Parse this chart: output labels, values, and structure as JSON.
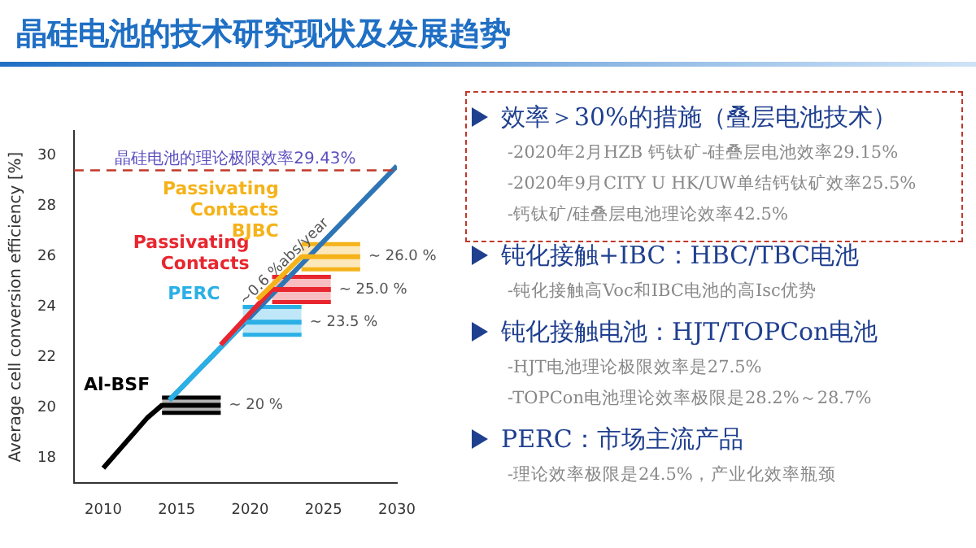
{
  "chart_data": {
    "type": "line",
    "title": "晶硅电池的技术研究现状及发展趋势",
    "ylabel": "Average cell conversion efficiency [%]",
    "xlim": [
      2008,
      2030
    ],
    "xticks": [
      2010,
      2015,
      2020,
      2025,
      2030
    ],
    "ylim": [
      17,
      31
    ],
    "yticks": [
      18,
      20,
      22,
      24,
      26,
      28,
      30
    ],
    "grid": false,
    "legend": false,
    "marker": "none",
    "line_style": "solid",
    "series": [
      {
        "name": "Al-BSF",
        "color": "#000000",
        "x": [
          2010,
          2013,
          2014,
          2018
        ],
        "values": [
          17.6,
          19.6,
          20.1,
          20.1
        ],
        "lower": [
          null,
          null,
          19.8,
          19.8
        ],
        "upper": [
          null,
          null,
          20.4,
          20.4
        ]
      },
      {
        "color": "#2e75b6",
        "x": [
          2014.5,
          2030
        ],
        "values": [
          20.3,
          29.6
        ]
      },
      {
        "name": "PERC",
        "color": "#2bb0e6",
        "x": [
          2014.5,
          2019,
          2019.5,
          2023.5
        ],
        "values": [
          20.3,
          23.0,
          23.4,
          23.4
        ],
        "lower": [
          null,
          null,
          22.9,
          22.9
        ],
        "upper": [
          null,
          null,
          24.0,
          24.0
        ]
      },
      {
        "name": "Passivating Contacts",
        "color": "#e8262f",
        "x": [
          2018,
          2021.5,
          2025.5
        ],
        "values": [
          22.5,
          24.7,
          24.7
        ],
        "lower": [
          null,
          24.2,
          24.2
        ],
        "upper": [
          null,
          25.2,
          25.2
        ]
      },
      {
        "name": "Passivating Contacts BJBC",
        "color": "#f5b31a",
        "x": [
          2020.5,
          2023.5,
          2027.5
        ],
        "values": [
          24.3,
          26.0,
          26.0
        ],
        "lower": [
          null,
          25.5,
          25.5
        ],
        "upper": [
          null,
          26.5,
          26.5
        ]
      }
    ],
    "ref_lines": [
      {
        "axis": "y",
        "value": 29.43,
        "label": "晶硅电池的理论极限效率29.43%",
        "color": "#c0392b",
        "line_style": "dashed"
      }
    ],
    "annotations": [
      {
        "text": "~ 20 %",
        "x": 2018,
        "y": 20.1
      },
      {
        "text": "~ 23.5 %",
        "x": 2023.5,
        "y": 23.4
      },
      {
        "text": "~ 25.0 %",
        "x": 2025.5,
        "y": 24.7
      },
      {
        "text": "~ 26.0 %",
        "x": 2027.5,
        "y": 26.0
      },
      {
        "text": "~0.6 %abs/year",
        "x": 2023,
        "y": 25.4
      },
      "效率＞30%的措施（叠层电池技术）",
      "-2020年2月HZB 钙钛矿-硅叠层电池效率29.15%",
      "-2020年9月CITY U HK/UW单结钙钛矿效率25.5%",
      "-钙钛矿/硅叠层电池理论效率42.5%",
      "钝化接触+IBC：HBC/TBC电池",
      "-钝化接触高Voc和IBC电池的高Isc优势",
      "钝化接触电池：HJT/TOPCon电池",
      "-HJT电池理论极限效率是27.5%",
      "-TOPCon电池理论效率极限是28.2%～28.7%",
      "PERC：市场主流产品",
      "-理论效率极限是24.5%，产业化效率瓶颈"
    ]
  }
}
